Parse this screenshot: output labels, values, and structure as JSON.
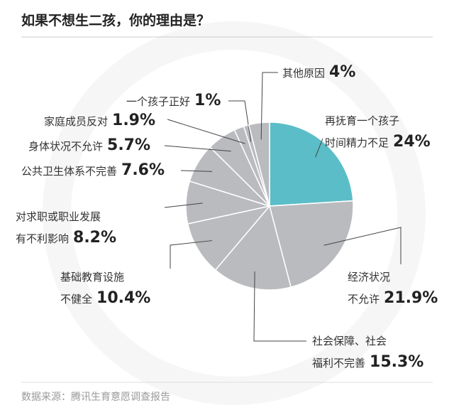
{
  "chart_data": {
    "type": "pie",
    "title": "如果不想生二孩，你的理由是？",
    "source": "数据来源：腾讯生育意愿调查报告",
    "categories": [
      "再抚育一个孩子\n时间精力不足",
      "经济状况\n不允许",
      "社会保障、社会\n福利不完善",
      "基础教育设施\n不健全",
      "对求职或职业发展\n有不利影响",
      "公共卫生体系不完善",
      "身体状况不允许",
      "家庭成员反对",
      "一个孩子正好",
      "其他原因"
    ],
    "values": [
      24,
      21.9,
      15.3,
      10.4,
      8.2,
      7.6,
      5.7,
      1.9,
      1,
      4
    ],
    "value_labels": [
      "24%",
      "21.9%",
      "15.3%",
      "10.4%",
      "8.2%",
      "7.6%",
      "5.7%",
      "1.9%",
      "1%",
      "4%"
    ],
    "colors": [
      "#5bbdc7",
      "#b9bbbe",
      "#b9bbbe",
      "#b9bbbe",
      "#b9bbbe",
      "#b9bbbe",
      "#b9bbbe",
      "#b9bbbe",
      "#b9bbbe",
      "#b9bbbe"
    ]
  }
}
